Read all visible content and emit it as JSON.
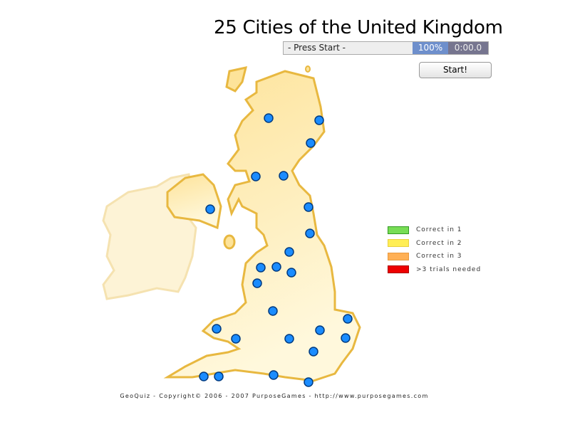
{
  "header": {
    "title": "25 Cities of the United Kingdom"
  },
  "status": {
    "message": "- Press Start -",
    "progress": "100%",
    "timer": "0:00.0",
    "progress_color": "#6e8fcc",
    "timer_color": "#76758f"
  },
  "controls": {
    "start_label": "Start!"
  },
  "legend": [
    {
      "label": "Correct in 1",
      "color": "#77dd55"
    },
    {
      "label": "Correct in 2",
      "color": "#ffee55"
    },
    {
      "label": "Correct in 3",
      "color": "#ffb055"
    },
    {
      "label": ">3 trials needed",
      "color": "#ee0000"
    }
  ],
  "map": {
    "city_count": 25,
    "city_color": "#1a8cff",
    "land_color": "#fde9a6",
    "outline_color": "#e8b840"
  },
  "footer": {
    "text": "GeoQuiz - Copyright© 2006 - 2007 PurposeGames - http://www.purposegames.com"
  }
}
